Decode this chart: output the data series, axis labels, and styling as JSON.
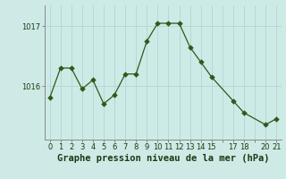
{
  "x": [
    0,
    1,
    2,
    3,
    4,
    5,
    6,
    7,
    8,
    9,
    10,
    11,
    12,
    13,
    14,
    15,
    17,
    18,
    20,
    21
  ],
  "y": [
    1015.8,
    1016.3,
    1016.3,
    1015.95,
    1016.1,
    1015.7,
    1015.85,
    1016.2,
    1016.2,
    1016.75,
    1017.05,
    1017.05,
    1017.05,
    1016.65,
    1016.4,
    1016.15,
    1015.75,
    1015.55,
    1015.35,
    1015.45
  ],
  "yticks": [
    1016,
    1017
  ],
  "line_color": "#2d5a1b",
  "marker_color": "#2d5a1b",
  "bg_color": "#ceeae6",
  "grid_color": "#b0d8d2",
  "xlabel": "Graphe pression niveau de la mer (hPa)",
  "xlabel_color": "#1a3a10",
  "xlabel_fontsize": 7.5,
  "tick_color": "#1a3a10",
  "tick_fontsize": 6.0,
  "ylim_min": 1015.1,
  "ylim_max": 1017.35,
  "xlim_min": -0.5,
  "xlim_max": 21.5
}
